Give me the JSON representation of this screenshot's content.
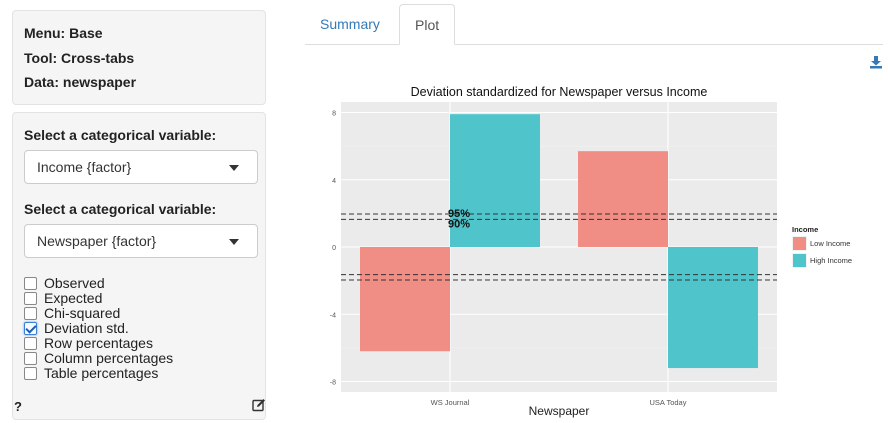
{
  "sidebar": {
    "menu_line": "Menu: Base",
    "tool_line": "Tool: Cross-tabs",
    "data_line": "Data: newspaper",
    "var1_label": "Select a categorical variable:",
    "var1_value": "Income {factor}",
    "var2_label": "Select a categorical variable:",
    "var2_value": "Newspaper {factor}",
    "checkboxes": [
      {
        "label": "Observed",
        "checked": false
      },
      {
        "label": "Expected",
        "checked": false
      },
      {
        "label": "Chi-squared",
        "checked": false
      },
      {
        "label": "Deviation std.",
        "checked": true
      },
      {
        "label": "Row percentages",
        "checked": false
      },
      {
        "label": "Column percentages",
        "checked": false
      },
      {
        "label": "Table percentages",
        "checked": false
      }
    ],
    "help": "?",
    "edit_icon": "edit-icon"
  },
  "tabs": [
    {
      "label": "Summary",
      "active": false
    },
    {
      "label": "Plot",
      "active": true
    }
  ],
  "download_icon": "download-icon",
  "chart_data": {
    "type": "bar",
    "title": "Deviation standardized for Newspaper versus Income",
    "xlabel": "Newspaper",
    "ylabel": "",
    "categories": [
      "WS Journal",
      "USA Today"
    ],
    "series": [
      {
        "name": "Low Income",
        "color": "#f08e86",
        "values": [
          -6.2,
          5.7
        ]
      },
      {
        "name": "High Income",
        "color": "#4fc5cb",
        "values": [
          7.9,
          -7.2
        ]
      }
    ],
    "ylim": [
      -8,
      8
    ],
    "yticks": [
      "8",
      "4",
      "0",
      "-4",
      "-8"
    ],
    "reference_lines": [
      1.96,
      1.64,
      -1.64,
      -1.96
    ],
    "annotations": [
      "95%",
      "90%"
    ],
    "legend": {
      "title": "Income",
      "position": "right"
    },
    "grid": true
  }
}
